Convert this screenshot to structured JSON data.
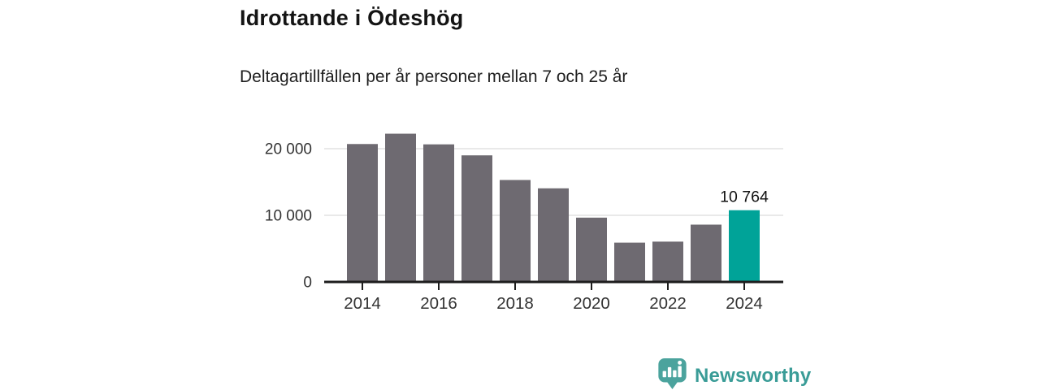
{
  "header": {
    "title": "Idrottande i Ödeshög",
    "subtitle": "Deltagartillfällen per år personer mellan 7 och 25 år"
  },
  "chart_data": {
    "type": "bar",
    "title": "Idrottande i Ödeshög",
    "subtitle": "Deltagartillfällen per år personer mellan 7 och 25 år",
    "categories": [
      "2014",
      "2015",
      "2016",
      "2017",
      "2018",
      "2019",
      "2020",
      "2021",
      "2022",
      "2023",
      "2024"
    ],
    "values": [
      20700,
      22250,
      20650,
      19000,
      15300,
      14050,
      9650,
      5900,
      6050,
      8600,
      10764
    ],
    "highlight_index": 10,
    "highlight_label": "10 764",
    "x_tick_labels": [
      "2014",
      "2016",
      "2018",
      "2020",
      "2022",
      "2024"
    ],
    "y_ticks": [
      0,
      10000,
      20000
    ],
    "y_tick_labels": [
      "0",
      "10 000",
      "20 000"
    ],
    "ylim": [
      0,
      22600
    ],
    "grid": true,
    "legend_position": "none",
    "xlabel": "",
    "ylabel": "",
    "colors": {
      "bar": "#6e6a71",
      "highlight": "#00a398",
      "axis": "#1d1d1d",
      "gridline": "#e2e2e2",
      "tick_label": "#333333",
      "value_label": "#111111"
    }
  },
  "footer": {
    "brand": "Newsworthy",
    "brand_color": "#3a9c97",
    "icon": "newsworthy-speech-bubble-bar-chart-icon",
    "icon_color": "#4ba39d"
  }
}
